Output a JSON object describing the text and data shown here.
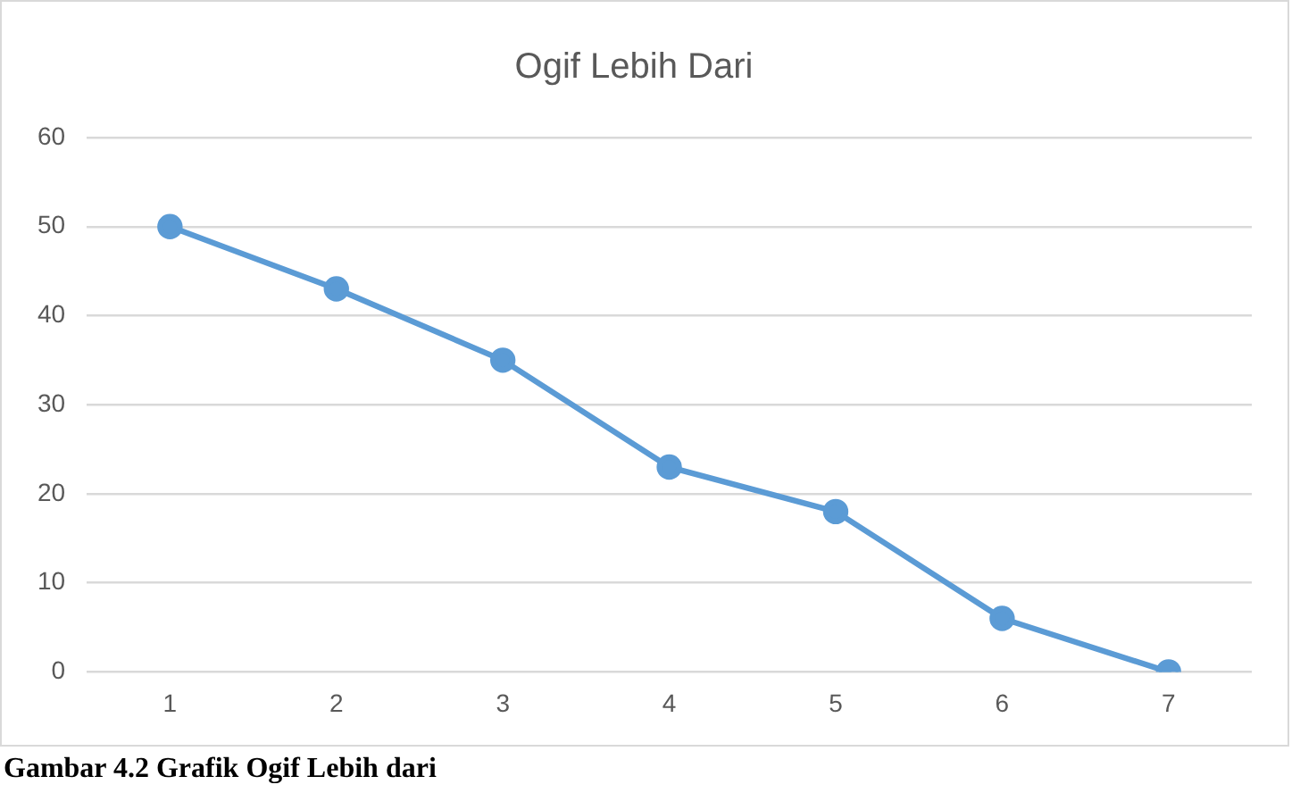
{
  "chart_data": {
    "type": "line",
    "title": "Ogif Lebih Dari",
    "categories": [
      "1",
      "2",
      "3",
      "4",
      "5",
      "6",
      "7"
    ],
    "values": [
      50,
      43,
      35,
      23,
      18,
      6,
      0
    ],
    "color": "#5b9bd5",
    "ylim": [
      0,
      60
    ],
    "yticks": [
      0,
      10,
      20,
      30,
      40,
      50,
      60
    ],
    "grid": "y",
    "marker": "circle",
    "line_style": "solid",
    "annotations": [
      "Gambar 4.2 Grafik Ogif Lebih dari"
    ]
  }
}
